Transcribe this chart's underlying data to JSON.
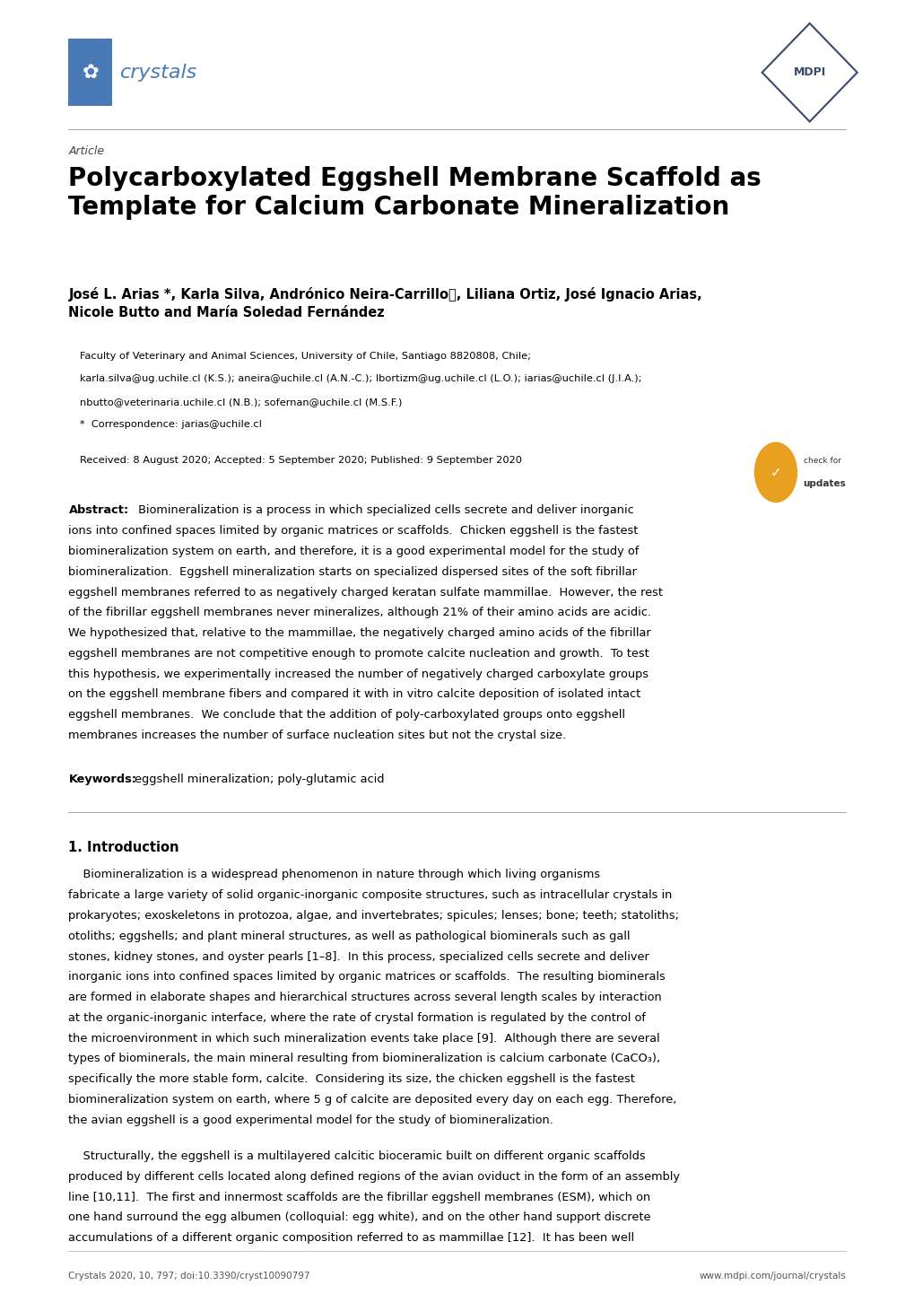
{
  "background_color": "#ffffff",
  "page_width": 10.2,
  "page_height": 14.42,
  "journal_name": "crystals",
  "journal_color": "#4a7ab5",
  "journal_box_color": "#4a7ab5",
  "mdpi_color": "#3a4a6b",
  "article_label": "Article",
  "title": "Polycarboxylated Eggshell Membrane Scaffold as\nTemplate for Calcium Carbonate Mineralization",
  "authors": "José L. Arias *, Karla Silva, Andrónico Neira-Carrilloⓓ, Liliana Ortiz, José Ignacio Arias,\nNicole Butto and María Soledad Fernández",
  "affiliation1": "Faculty of Veterinary and Animal Sciences, University of Chile, Santiago 8820808, Chile;",
  "affiliation2": "karla.silva@ug.uchile.cl (K.S.); aneira@uchile.cl (A.N.-C.); lbortizm@ug.uchile.cl (L.O.); iarias@uchile.cl (J.I.A.);",
  "affiliation3": "nbutto@veterinaria.uchile.cl (N.B.); sofernan@uchile.cl (M.S.F.)",
  "correspondence": "*  Correspondence: jarias@uchile.cl",
  "received": "Received: 8 August 2020; Accepted: 5 September 2020; Published: 9 September 2020",
  "abstract_label": "Abstract:",
  "abstract_body": "Biomineralization is a process in which specialized cells secrete and deliver inorganic ions into confined spaces limited by organic matrices or scaffolds.  Chicken eggshell is the fastest biomineralization system on earth, and therefore, it is a good experimental model for the study of biomineralization.  Eggshell mineralization starts on specialized dispersed sites of the soft fibrillar eggshell membranes referred to as negatively charged keratan sulfate mammillae.  However, the rest of the fibrillar eggshell membranes never mineralizes, although 21% of their amino acids are acidic.  We hypothesized that, relative to the mammillae, the negatively charged amino acids of the fibrillar eggshell membranes are not competitive enough to promote calcite nucleation and growth.  To test this hypothesis, we experimentally increased the number of negatively charged carboxylate groups on the eggshell membrane fibers and compared it with in vitro calcite deposition of isolated intact eggshell membranes.  We conclude that the addition of poly-carboxylated groups onto eggshell membranes increases the number of surface nucleation sites but not the crystal size.",
  "abstract_lines": [
    "Abstract: Biomineralization is a process in which specialized cells secrete and deliver inorganic",
    "ions into confined spaces limited by organic matrices or scaffolds.  Chicken eggshell is the fastest",
    "biomineralization system on earth, and therefore, it is a good experimental model for the study of",
    "biomineralization.  Eggshell mineralization starts on specialized dispersed sites of the soft fibrillar",
    "eggshell membranes referred to as negatively charged keratan sulfate mammillae.  However, the rest",
    "of the fibrillar eggshell membranes never mineralizes, although 21% of their amino acids are acidic.",
    "We hypothesized that, relative to the mammillae, the negatively charged amino acids of the fibrillar",
    "eggshell membranes are not competitive enough to promote calcite nucleation and growth.  To test",
    "this hypothesis, we experimentally increased the number of negatively charged carboxylate groups",
    "on the eggshell membrane fibers and compared it with in vitro calcite deposition of isolated intact",
    "eggshell membranes.  We conclude that the addition of poly-carboxylated groups onto eggshell",
    "membranes increases the number of surface nucleation sites but not the crystal size."
  ],
  "keywords_label": "Keywords:",
  "keywords_body": "eggshell mineralization; poly-glutamic acid",
  "section1_title": "1. Introduction",
  "intro1_lines": [
    "    Biomineralization is a widespread phenomenon in nature through which living organisms",
    "fabricate a large variety of solid organic-inorganic composite structures, such as intracellular crystals in",
    "prokaryotes; exoskeletons in protozoa, algae, and invertebrates; spicules; lenses; bone; teeth; statoliths;",
    "otoliths; eggshells; and plant mineral structures, as well as pathological biominerals such as gall",
    "stones, kidney stones, and oyster pearls [1–8].  In this process, specialized cells secrete and deliver",
    "inorganic ions into confined spaces limited by organic matrices or scaffolds.  The resulting biominerals",
    "are formed in elaborate shapes and hierarchical structures across several length scales by interaction",
    "at the organic-inorganic interface, where the rate of crystal formation is regulated by the control of",
    "the microenvironment in which such mineralization events take place [9].  Although there are several",
    "types of biominerals, the main mineral resulting from biomineralization is calcium carbonate (CaCO₃),",
    "specifically the more stable form, calcite.  Considering its size, the chicken eggshell is the fastest",
    "biomineralization system on earth, where 5 g of calcite are deposited every day on each egg. Therefore,",
    "the avian eggshell is a good experimental model for the study of biomineralization."
  ],
  "intro2_lines": [
    "    Structurally, the eggshell is a multilayered calcitic bioceramic built on different organic scaffolds",
    "produced by different cells located along defined regions of the avian oviduct in the form of an assembly",
    "line [10,11].  The first and innermost scaffolds are the fibrillar eggshell membranes (ESM), which on",
    "one hand surround the egg albumen (colloquial: egg white), and on the other hand support discrete",
    "accumulations of a different organic composition referred to as mammillae [12].  It has been well"
  ],
  "footer_left": "Crystals 2020, 10, 797; doi:10.3390/cryst10090797",
  "footer_right": "www.mdpi.com/journal/crystals",
  "separator_color": "#aaaaaa",
  "text_color": "#000000"
}
